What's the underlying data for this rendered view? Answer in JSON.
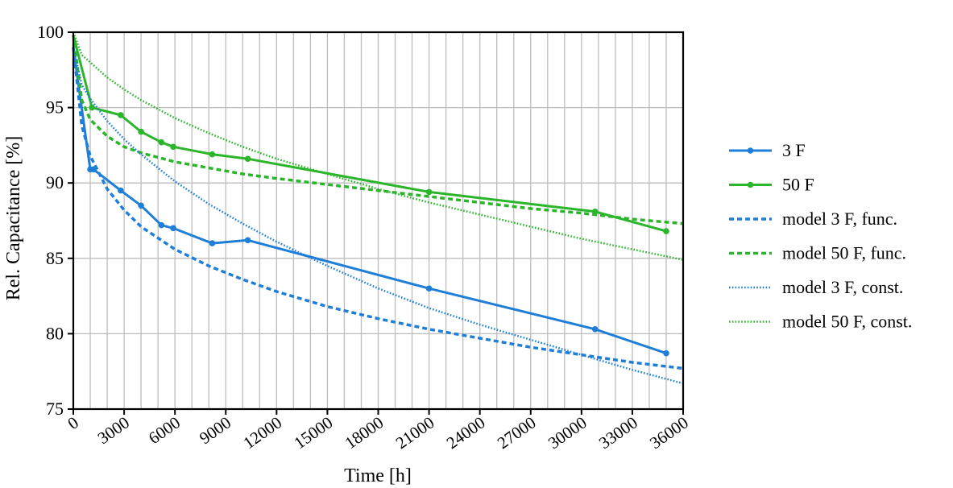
{
  "chart_data": {
    "type": "line",
    "xlabel": "Time [h]",
    "ylabel": "Rel. Capacitance [%]",
    "xlim": [
      0,
      36000
    ],
    "ylim": [
      75,
      100
    ],
    "x_ticks": [
      0,
      3000,
      6000,
      9000,
      12000,
      15000,
      18000,
      21000,
      24000,
      27000,
      30000,
      33000,
      36000
    ],
    "x_tick_labels": [
      "0",
      "3000",
      "6000",
      "9000",
      "12000",
      "15000",
      "18000",
      "21000",
      "24000",
      "27000",
      "30000",
      "33000",
      "36000"
    ],
    "y_ticks": [
      75,
      80,
      85,
      90,
      95,
      100
    ],
    "y_tick_labels": [
      "75",
      "80",
      "85",
      "90",
      "95",
      "100"
    ],
    "grid": true,
    "legend_position": "right",
    "colors": {
      "blue": "#1f7fd8",
      "green": "#2bb52b"
    },
    "series": [
      {
        "name": "3 F",
        "style": "solid-markers",
        "color": "#1f7fd8",
        "x": [
          0,
          1000,
          1200,
          2800,
          4000,
          5200,
          5900,
          8200,
          10300,
          21000,
          30800,
          35000
        ],
        "y": [
          99.0,
          90.9,
          90.9,
          89.5,
          88.5,
          87.2,
          87.0,
          86.0,
          86.2,
          83.0,
          80.3,
          78.7
        ]
      },
      {
        "name": "50 F",
        "style": "solid-markers",
        "color": "#2bb52b",
        "x": [
          0,
          1100,
          2800,
          4000,
          5200,
          5900,
          8200,
          10300,
          21000,
          30800,
          35000
        ],
        "y": [
          99.8,
          95.0,
          94.5,
          93.4,
          92.7,
          92.4,
          91.9,
          91.6,
          89.4,
          88.1,
          86.8
        ]
      },
      {
        "name": "model 3 F, func.",
        "style": "dashed",
        "color": "#1f7fd8",
        "x": [
          0,
          500,
          1000,
          2000,
          3000,
          4000,
          6000,
          8000,
          10000,
          12000,
          15000,
          18000,
          21000,
          24000,
          27000,
          30000,
          33000,
          36000
        ],
        "y": [
          99.0,
          93.8,
          91.8,
          89.6,
          88.2,
          87.1,
          85.6,
          84.5,
          83.6,
          82.8,
          81.8,
          81.0,
          80.3,
          79.7,
          79.1,
          78.6,
          78.1,
          77.7
        ]
      },
      {
        "name": "model 50 F, func.",
        "style": "dashed",
        "color": "#2bb52b",
        "x": [
          0,
          500,
          1000,
          2000,
          3000,
          4000,
          6000,
          8000,
          10000,
          12000,
          15000,
          18000,
          21000,
          24000,
          27000,
          30000,
          33000,
          36000
        ],
        "y": [
          99.8,
          95.5,
          94.2,
          93.1,
          92.4,
          92.0,
          91.4,
          91.0,
          90.6,
          90.3,
          89.9,
          89.5,
          89.1,
          88.7,
          88.3,
          88.0,
          87.6,
          87.3
        ]
      },
      {
        "name": "model 3 F, const.",
        "style": "dotted",
        "color": "#1f7fd8",
        "x": [
          0,
          500,
          1000,
          2000,
          3000,
          4000,
          6000,
          8000,
          10000,
          12000,
          15000,
          18000,
          21000,
          24000,
          27000,
          30000,
          33000,
          36000
        ],
        "y": [
          99.0,
          96.5,
          95.6,
          94.1,
          92.9,
          91.9,
          90.1,
          88.6,
          87.3,
          86.1,
          84.5,
          83.0,
          81.7,
          80.6,
          79.6,
          78.6,
          77.6,
          76.7
        ]
      },
      {
        "name": "model 50 F, const.",
        "style": "dotted",
        "color": "#2bb52b",
        "x": [
          0,
          500,
          1000,
          2000,
          3000,
          4000,
          6000,
          8000,
          10000,
          12000,
          15000,
          18000,
          21000,
          24000,
          27000,
          30000,
          33000,
          36000
        ],
        "y": [
          100.0,
          98.5,
          98.0,
          97.0,
          96.2,
          95.5,
          94.3,
          93.3,
          92.4,
          91.6,
          90.6,
          89.6,
          88.7,
          87.9,
          87.1,
          86.3,
          85.6,
          84.9
        ]
      }
    ]
  }
}
